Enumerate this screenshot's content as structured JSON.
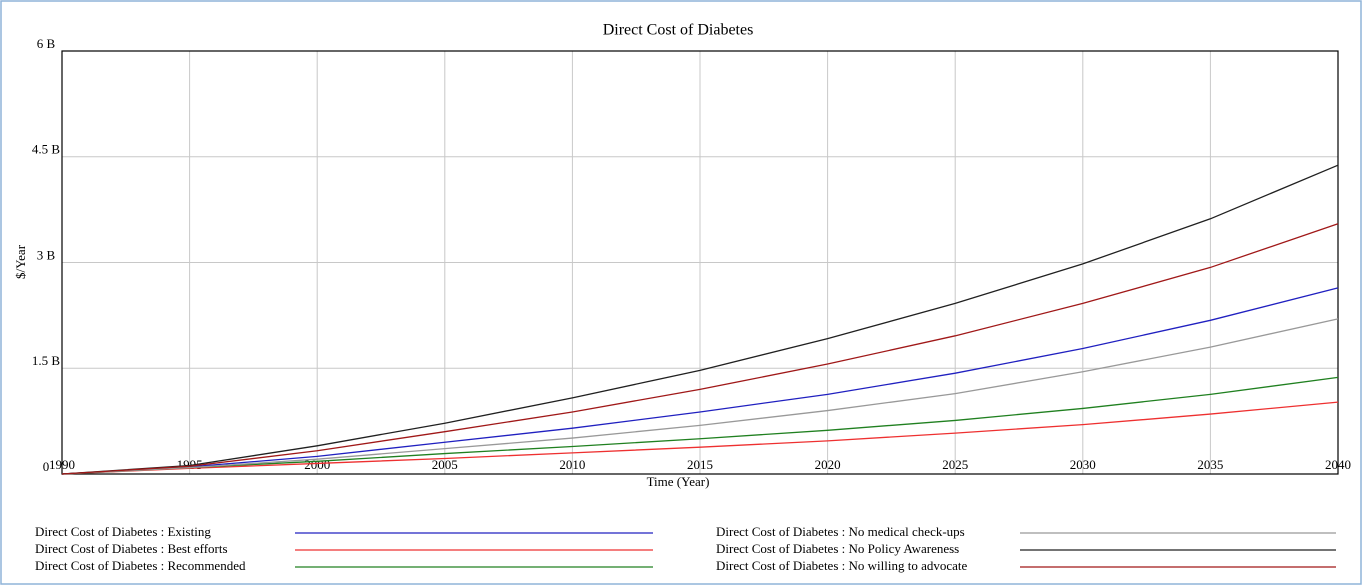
{
  "chart_data": {
    "type": "line",
    "title": "Direct Cost of Diabetes",
    "x_label": "Time (Year)",
    "y_label": "$/Year",
    "x": [
      1990,
      1995,
      2000,
      2005,
      2010,
      2015,
      2020,
      2025,
      2030,
      2035,
      2040
    ],
    "xlim": [
      1990,
      2040
    ],
    "xticks": [
      1990,
      1995,
      2000,
      2005,
      2010,
      2015,
      2020,
      2025,
      2030,
      2035,
      2040
    ],
    "ylim": [
      0,
      6000000000
    ],
    "yticks": [
      0,
      {
        "value": 1500000000,
        "label": "1.5 B"
      },
      {
        "value": 3000000000,
        "label": "3 B"
      },
      {
        "value": 4500000000,
        "label": "4.5 B"
      },
      {
        "value": 6000000000,
        "label": "6 B"
      }
    ],
    "grid": true,
    "series": [
      {
        "name": "Direct Cost of Diabetes : Existing",
        "color": "#2020c0",
        "values": [
          0,
          100000000,
          250000000,
          450000000,
          650000000,
          880000000,
          1130000000,
          1430000000,
          1780000000,
          2180000000,
          2640000000
        ]
      },
      {
        "name": "Direct Cost of Diabetes : Best efforts",
        "color": "#ee3030",
        "values": [
          0,
          80000000,
          150000000,
          220000000,
          300000000,
          380000000,
          470000000,
          580000000,
          700000000,
          850000000,
          1020000000
        ]
      },
      {
        "name": "Direct Cost of Diabetes : Recommended",
        "color": "#208020",
        "values": [
          0,
          90000000,
          180000000,
          290000000,
          390000000,
          500000000,
          620000000,
          760000000,
          930000000,
          1130000000,
          1370000000
        ]
      },
      {
        "name": "Direct Cost of Diabetes : No medical check-ups",
        "color": "#999999",
        "values": [
          0,
          90000000,
          210000000,
          360000000,
          510000000,
          690000000,
          900000000,
          1140000000,
          1450000000,
          1800000000,
          2200000000
        ]
      },
      {
        "name": "Direct Cost of Diabetes : No Policy Awareness",
        "color": "#202020",
        "values": [
          0,
          120000000,
          400000000,
          720000000,
          1080000000,
          1470000000,
          1920000000,
          2420000000,
          2980000000,
          3620000000,
          4380000000
        ]
      },
      {
        "name": "Direct Cost of Diabetes : No willing to advocate",
        "color": "#a01818",
        "values": [
          0,
          110000000,
          330000000,
          600000000,
          880000000,
          1200000000,
          1560000000,
          1960000000,
          2420000000,
          2930000000,
          3550000000
        ]
      }
    ]
  }
}
